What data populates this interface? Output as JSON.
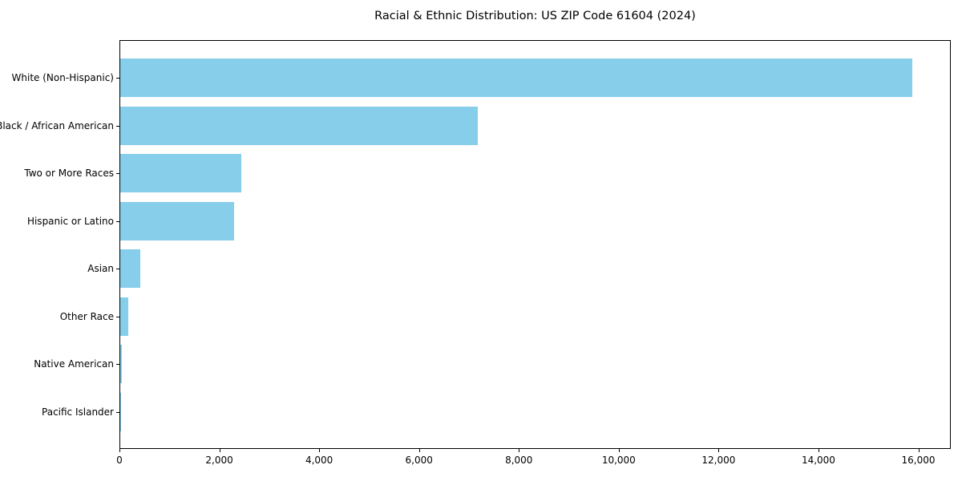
{
  "chart_data": {
    "type": "bar",
    "orientation": "horizontal",
    "title": "Racial & Ethnic Distribution: US ZIP Code 61604 (2024)",
    "categories": [
      "White (Non-Hispanic)",
      "Black / African American",
      "Two or More Races",
      "Hispanic or Latino",
      "Asian",
      "Other Race",
      "Native American",
      "Pacific Islander"
    ],
    "values": [
      15860,
      7165,
      2420,
      2275,
      405,
      160,
      30,
      10
    ],
    "xlabel": "",
    "ylabel": "",
    "xlim": [
      0,
      16650
    ],
    "x_ticks": [
      0,
      2000,
      4000,
      6000,
      8000,
      10000,
      12000,
      14000,
      16000
    ],
    "x_tick_labels": [
      "0",
      "2,000",
      "4,000",
      "6,000",
      "8,000",
      "10,000",
      "12,000",
      "14,000",
      "16,000"
    ],
    "bar_color": "#87CEEB",
    "axis_color": "#000000",
    "background_color": "#ffffff",
    "grid": false,
    "legend": null
  }
}
